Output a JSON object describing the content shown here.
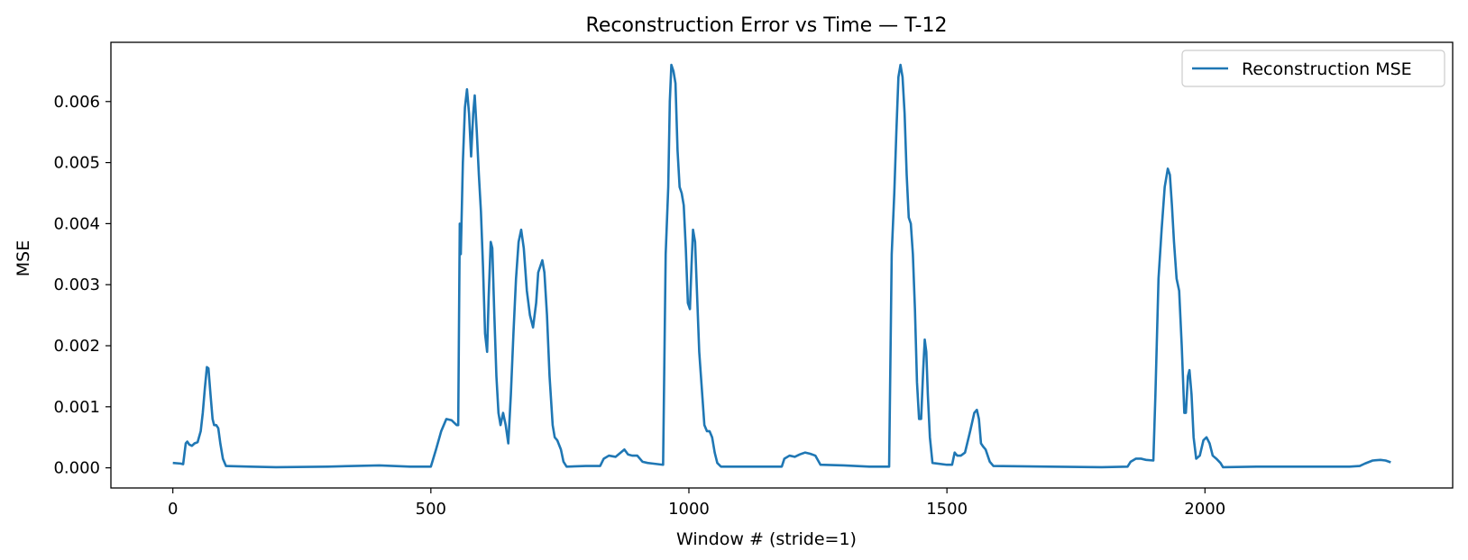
{
  "chart_data": {
    "type": "line",
    "title": "Reconstruction Error vs Time — T-12",
    "xlabel": "Window # (stride=1)",
    "ylabel": "MSE",
    "xlim": [
      -120,
      2480
    ],
    "ylim": [
      -0.00033,
      0.00697
    ],
    "xticks": [
      0,
      500,
      1000,
      1500,
      2000
    ],
    "xtick_labels": [
      "0",
      "500",
      "1000",
      "1500",
      "2000"
    ],
    "yticks": [
      0,
      0.001,
      0.002,
      0.003,
      0.004,
      0.005,
      0.006
    ],
    "ytick_labels": [
      "0.000",
      "0.001",
      "0.002",
      "0.003",
      "0.004",
      "0.005",
      "0.006"
    ],
    "grid": false,
    "legend_position": "top-right",
    "series": [
      {
        "name": "Reconstruction MSE",
        "color": "#1f77b4",
        "points": [
          [
            0,
            8e-05
          ],
          [
            15,
            7e-05
          ],
          [
            20,
            6e-05
          ],
          [
            25,
            0.0004
          ],
          [
            28,
            0.00043
          ],
          [
            32,
            0.00038
          ],
          [
            37,
            0.00036
          ],
          [
            42,
            0.0004
          ],
          [
            48,
            0.00042
          ],
          [
            54,
            0.0006
          ],
          [
            58,
            0.0009
          ],
          [
            62,
            0.0013
          ],
          [
            66,
            0.00165
          ],
          [
            69,
            0.00163
          ],
          [
            73,
            0.0012
          ],
          [
            77,
            0.0008
          ],
          [
            80,
            0.0007
          ],
          [
            84,
            0.0007
          ],
          [
            88,
            0.00065
          ],
          [
            92,
            0.0004
          ],
          [
            97,
            0.00015
          ],
          [
            103,
            3e-05
          ],
          [
            150,
            2e-05
          ],
          [
            200,
            1e-05
          ],
          [
            300,
            2e-05
          ],
          [
            400,
            4e-05
          ],
          [
            460,
            2e-05
          ],
          [
            500,
            2e-05
          ],
          [
            510,
            0.0003
          ],
          [
            520,
            0.0006
          ],
          [
            530,
            0.0008
          ],
          [
            540,
            0.00078
          ],
          [
            550,
            0.0007
          ],
          [
            553,
            0.0007
          ],
          [
            556,
            0.004
          ],
          [
            558,
            0.0035
          ],
          [
            562,
            0.005
          ],
          [
            566,
            0.0059
          ],
          [
            570,
            0.0062
          ],
          [
            574,
            0.0058
          ],
          [
            578,
            0.0051
          ],
          [
            582,
            0.0058
          ],
          [
            585,
            0.0061
          ],
          [
            589,
            0.0055
          ],
          [
            593,
            0.0048
          ],
          [
            597,
            0.0042
          ],
          [
            601,
            0.0033
          ],
          [
            605,
            0.0022
          ],
          [
            609,
            0.0019
          ],
          [
            612,
            0.0028
          ],
          [
            616,
            0.0037
          ],
          [
            619,
            0.0036
          ],
          [
            623,
            0.0025
          ],
          [
            627,
            0.0015
          ],
          [
            631,
            0.0009
          ],
          [
            635,
            0.0007
          ],
          [
            640,
            0.0009
          ],
          [
            645,
            0.0007
          ],
          [
            650,
            0.0004
          ],
          [
            655,
            0.0012
          ],
          [
            660,
            0.0022
          ],
          [
            665,
            0.0031
          ],
          [
            670,
            0.0037
          ],
          [
            675,
            0.0039
          ],
          [
            680,
            0.0036
          ],
          [
            686,
            0.0029
          ],
          [
            692,
            0.0025
          ],
          [
            698,
            0.0023
          ],
          [
            704,
            0.0027
          ],
          [
            708,
            0.0032
          ],
          [
            712,
            0.0033
          ],
          [
            716,
            0.0034
          ],
          [
            720,
            0.0032
          ],
          [
            725,
            0.0025
          ],
          [
            730,
            0.0015
          ],
          [
            736,
            0.0007
          ],
          [
            740,
            0.0005
          ],
          [
            745,
            0.00045
          ],
          [
            752,
            0.0003
          ],
          [
            757,
            0.0001
          ],
          [
            763,
            2e-05
          ],
          [
            800,
            3e-05
          ],
          [
            828,
            3e-05
          ],
          [
            835,
            0.00015
          ],
          [
            845,
            0.0002
          ],
          [
            858,
            0.00018
          ],
          [
            868,
            0.00025
          ],
          [
            875,
            0.0003
          ],
          [
            882,
            0.00022
          ],
          [
            890,
            0.0002
          ],
          [
            900,
            0.0002
          ],
          [
            910,
            0.0001
          ],
          [
            920,
            8e-05
          ],
          [
            930,
            7e-05
          ],
          [
            950,
            5e-05
          ],
          [
            955,
            0.0035
          ],
          [
            960,
            0.0046
          ],
          [
            963,
            0.006
          ],
          [
            966,
            0.0066
          ],
          [
            970,
            0.0065
          ],
          [
            974,
            0.0063
          ],
          [
            978,
            0.0052
          ],
          [
            982,
            0.0046
          ],
          [
            986,
            0.0045
          ],
          [
            990,
            0.0043
          ],
          [
            994,
            0.0036
          ],
          [
            998,
            0.0027
          ],
          [
            1002,
            0.0026
          ],
          [
            1005,
            0.0033
          ],
          [
            1008,
            0.0039
          ],
          [
            1012,
            0.0037
          ],
          [
            1016,
            0.0028
          ],
          [
            1020,
            0.0019
          ],
          [
            1025,
            0.0013
          ],
          [
            1030,
            0.0007
          ],
          [
            1035,
            0.0006
          ],
          [
            1040,
            0.0006
          ],
          [
            1045,
            0.0005
          ],
          [
            1050,
            0.00025
          ],
          [
            1055,
            8e-05
          ],
          [
            1062,
            2e-05
          ],
          [
            1100,
            2e-05
          ],
          [
            1150,
            2e-05
          ],
          [
            1180,
            2e-05
          ],
          [
            1185,
            0.00015
          ],
          [
            1195,
            0.0002
          ],
          [
            1205,
            0.00018
          ],
          [
            1215,
            0.00022
          ],
          [
            1225,
            0.00025
          ],
          [
            1235,
            0.00023
          ],
          [
            1245,
            0.0002
          ],
          [
            1255,
            5e-05
          ],
          [
            1300,
            4e-05
          ],
          [
            1350,
            2e-05
          ],
          [
            1388,
            2e-05
          ],
          [
            1393,
            0.0035
          ],
          [
            1398,
            0.0045
          ],
          [
            1402,
            0.0055
          ],
          [
            1406,
            0.0064
          ],
          [
            1410,
            0.0066
          ],
          [
            1414,
            0.0064
          ],
          [
            1418,
            0.0058
          ],
          [
            1422,
            0.0048
          ],
          [
            1426,
            0.0041
          ],
          [
            1430,
            0.004
          ],
          [
            1434,
            0.0035
          ],
          [
            1438,
            0.0026
          ],
          [
            1442,
            0.0014
          ],
          [
            1446,
            0.0008
          ],
          [
            1450,
            0.0008
          ],
          [
            1454,
            0.0016
          ],
          [
            1457,
            0.0021
          ],
          [
            1460,
            0.0019
          ],
          [
            1463,
            0.0012
          ],
          [
            1467,
            0.0005
          ],
          [
            1472,
            8e-05
          ],
          [
            1500,
            5e-05
          ],
          [
            1510,
            5e-05
          ],
          [
            1515,
            0.00025
          ],
          [
            1520,
            0.0002
          ],
          [
            1527,
            0.0002
          ],
          [
            1535,
            0.00025
          ],
          [
            1545,
            0.0006
          ],
          [
            1553,
            0.0009
          ],
          [
            1558,
            0.00095
          ],
          [
            1562,
            0.0008
          ],
          [
            1566,
            0.0004
          ],
          [
            1570,
            0.00035
          ],
          [
            1575,
            0.0003
          ],
          [
            1583,
            0.0001
          ],
          [
            1590,
            3e-05
          ],
          [
            1700,
            2e-05
          ],
          [
            1800,
            1e-05
          ],
          [
            1850,
            2e-05
          ],
          [
            1856,
            0.0001
          ],
          [
            1866,
            0.00015
          ],
          [
            1876,
            0.00015
          ],
          [
            1886,
            0.00013
          ],
          [
            1900,
            0.00012
          ],
          [
            1904,
            0.0012
          ],
          [
            1910,
            0.0031
          ],
          [
            1916,
            0.0039
          ],
          [
            1922,
            0.0046
          ],
          [
            1928,
            0.0049
          ],
          [
            1932,
            0.0048
          ],
          [
            1936,
            0.0043
          ],
          [
            1940,
            0.0037
          ],
          [
            1945,
            0.0031
          ],
          [
            1950,
            0.0029
          ],
          [
            1955,
            0.002
          ],
          [
            1960,
            0.0009
          ],
          [
            1963,
            0.0009
          ],
          [
            1967,
            0.0015
          ],
          [
            1970,
            0.0016
          ],
          [
            1974,
            0.0012
          ],
          [
            1978,
            0.0005
          ],
          [
            1983,
            0.00015
          ],
          [
            1990,
            0.0002
          ],
          [
            1997,
            0.00045
          ],
          [
            2003,
            0.0005
          ],
          [
            2009,
            0.0004
          ],
          [
            2015,
            0.0002
          ],
          [
            2022,
            0.00015
          ],
          [
            2030,
            8e-05
          ],
          [
            2035,
            1e-05
          ],
          [
            2100,
            2e-05
          ],
          [
            2200,
            2e-05
          ],
          [
            2280,
            2e-05
          ],
          [
            2300,
            3e-05
          ],
          [
            2310,
            7e-05
          ],
          [
            2325,
            0.00012
          ],
          [
            2340,
            0.00013
          ],
          [
            2350,
            0.00012
          ],
          [
            2360,
            9e-05
          ]
        ]
      }
    ]
  }
}
